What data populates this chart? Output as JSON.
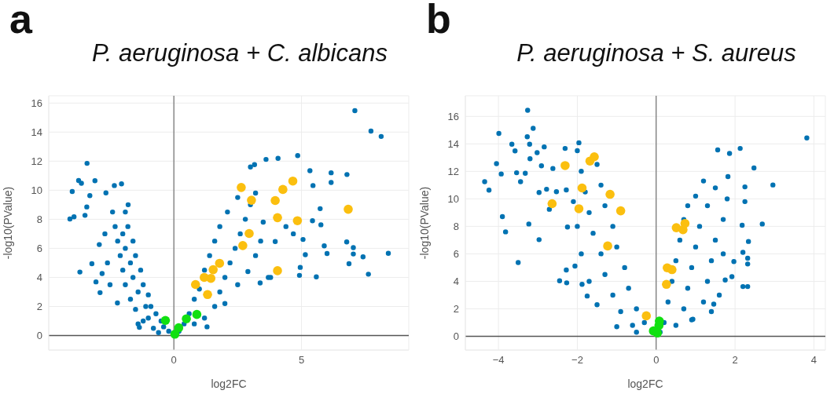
{
  "chart_data": [
    {
      "type": "scatter",
      "title": "P. aeruginosa + C. albicans",
      "xlabel": "log2FC",
      "ylabel": "-log10(PValue)",
      "annotations": [
        "a"
      ],
      "xlim": [
        -4.9,
        9.2
      ],
      "ylim": [
        -1,
        16.5
      ],
      "xticks": [
        0,
        5
      ],
      "yticks": [
        0,
        2,
        4,
        6,
        8,
        10,
        12,
        14,
        16
      ],
      "grid": true,
      "marker": "circle",
      "series": [
        {
          "color": "#0072b2",
          "x": [
            -3.4,
            -3.73,
            -3.62,
            -3.09,
            -3.98,
            -4.07,
            -3.91,
            -3.29,
            -3.41,
            -3.48,
            -2.92,
            -3.21,
            -3.68,
            -3.05,
            -2.89,
            -2.81,
            -2.05,
            -2.33,
            -2.66,
            -1.79,
            -2.21,
            -1.35,
            -0.2,
            -0.4,
            -0.5,
            -0.7,
            -0.9,
            -1.0,
            -1.2,
            -1.3,
            -1.5,
            -1.6,
            -1.8,
            -1.9,
            -0.8,
            -1.2,
            -1.5,
            -1.7,
            -1.9,
            -2.0,
            -2.1,
            -2.2,
            -2.3,
            -2.4,
            -1.0,
            -1.1,
            -1.4,
            -1.6,
            -1.7,
            -1.9,
            -2.0,
            -2.6,
            -2.7,
            -2.5,
            -1.4,
            -0.6,
            0.2,
            0.4,
            0.6,
            0.8,
            1.0,
            1.2,
            1.4,
            1.6,
            1.8,
            2.1,
            2.5,
            0.8,
            1.2,
            1.6,
            1.8,
            2.0,
            2.2,
            2.4,
            2.6,
            2.8,
            3.0,
            1.3,
            2.0,
            2.5,
            2.9,
            3.2,
            3.4,
            3.5,
            3.7,
            3.2,
            3.0,
            3.16,
            3.61,
            4.08,
            4.85,
            5.33,
            6.16,
            6.78,
            7.09,
            7.72,
            8.12,
            5.45,
            6.16,
            5.43,
            5.76,
            5.73,
            5.06,
            5.15,
            5.89,
            6.0,
            6.77,
            7.03,
            7.03,
            6.86,
            7.41,
            7.62,
            8.4,
            5.58,
            4.92,
            4.95,
            3.97,
            4.39,
            4.68,
            3.38,
            3.79
          ],
          "values": [
            11.85,
            10.67,
            10.48,
            10.65,
            9.91,
            8.02,
            8.17,
            9.63,
            8.85,
            8.27,
            6.26,
            4.94,
            4.37,
            3.69,
            2.95,
            4.27,
            10.44,
            10.32,
            9.82,
            9.0,
            2.24,
            0.56,
            0.3,
            0.6,
            1.0,
            1.5,
            2.0,
            2.8,
            3.5,
            4.5,
            5.5,
            6.5,
            7.5,
            8.5,
            0.5,
            1.0,
            1.8,
            2.5,
            3.5,
            4.5,
            5.5,
            6.5,
            7.5,
            8.5,
            1.2,
            2.0,
            3.0,
            4.0,
            5.0,
            6.0,
            7.0,
            5.0,
            7.0,
            3.5,
            0.8,
            0.2,
            0.3,
            0.8,
            1.5,
            2.5,
            3.2,
            4.5,
            5.5,
            6.5,
            7.5,
            8.5,
            9.5,
            0.8,
            1.2,
            2.0,
            3.0,
            4.0,
            5.0,
            6.0,
            7.0,
            8.0,
            9.0,
            0.6,
            2.2,
            3.5,
            4.4,
            5.5,
            6.5,
            7.8,
            4.0,
            9.8,
            11.6,
            11.76,
            12.12,
            12.19,
            12.38,
            11.34,
            11.2,
            11.08,
            15.47,
            14.07,
            13.7,
            10.32,
            10.53,
            7.9,
            7.62,
            8.73,
            6.61,
            5.56,
            6.17,
            5.64,
            6.44,
            6.05,
            5.61,
            4.94,
            5.41,
            4.22,
            5.66,
            4.04,
            4.14,
            4.69,
            6.47,
            7.5,
            7.0,
            3.62,
            4.0
          ]
        },
        {
          "color": "#fbbf0f",
          "x": [
            2.64,
            3.04,
            3.97,
            4.27,
            4.66,
            6.83,
            4.06,
            4.84,
            2.95,
            2.7,
            4.06,
            1.79,
            1.54,
            1.19,
            1.45,
            0.85,
            1.32
          ],
          "values": [
            10.19,
            9.31,
            9.29,
            10.05,
            10.63,
            8.69,
            8.11,
            7.9,
            7.02,
            6.19,
            4.46,
            4.97,
            4.53,
            4.0,
            3.93,
            3.51,
            2.82
          ]
        },
        {
          "color": "#11e011",
          "x": [
            -0.33,
            0.04,
            0.19,
            0.49,
            0.9
          ],
          "values": [
            1.04,
            0.09,
            0.53,
            1.15,
            1.45
          ]
        }
      ]
    },
    {
      "type": "scatter",
      "title": "P. aeruginosa + S. aureus",
      "xlabel": "log2FC",
      "ylabel": "-log10(PValue)",
      "annotations": [
        "b"
      ],
      "xlim": [
        -4.84,
        4.29
      ],
      "ylim": [
        -1,
        17.5
      ],
      "xticks": [
        -4,
        -2,
        0,
        2,
        4
      ],
      "yticks": [
        0,
        2,
        4,
        6,
        8,
        10,
        12,
        14,
        16
      ],
      "grid": true,
      "marker": "circle",
      "series": [
        {
          "color": "#0072b2",
          "x": [
            -3.26,
            -3.12,
            -3.99,
            -3.27,
            -3.21,
            -3.66,
            -3.58,
            -3.02,
            -2.84,
            -2.31,
            -3.2,
            -4.05,
            -2.91,
            -2.62,
            -3.93,
            -3.54,
            -3.32,
            -4.35,
            -3.44,
            -4.24,
            -2.97,
            -2.78,
            -2.53,
            -2.28,
            -3.9,
            -3.82,
            -3.23,
            -2.97,
            -3.5,
            -2.71,
            -2.25,
            -2.28,
            -2.45,
            -2.27,
            -1.96,
            -1.75,
            -1.88,
            -2.06,
            1.56,
            2.13,
            1.86,
            3.82,
            2.48,
            2.96,
            2.25,
            2.25,
            2.69,
            2.18,
            2.34,
            2.2,
            2.32,
            2.32,
            2.2,
            2.32,
            1.92,
            1.75,
            1.97,
            1.82,
            1.46,
            0.93,
            -0.1,
            -0.3,
            -0.5,
            -0.7,
            -0.8,
            -1.0,
            -1.1,
            -1.3,
            -1.4,
            -1.5,
            -0.6,
            -0.9,
            -1.1,
            -1.3,
            -1.4,
            -1.6,
            -1.7,
            -1.8,
            -1.9,
            -2.0,
            -1.0,
            -1.5,
            -1.7,
            -1.9,
            -2.0,
            -2.1,
            -0.5,
            0.1,
            0.2,
            0.3,
            0.4,
            0.5,
            0.6,
            0.7,
            0.8,
            1.0,
            1.2,
            0.5,
            0.7,
            0.8,
            0.9,
            1.0,
            1.1,
            1.3,
            1.5,
            0.9,
            1.2,
            1.3,
            1.4,
            1.5,
            1.7,
            1.8,
            1.6,
            1.7,
            1.4
          ],
          "values": [
            16.44,
            15.13,
            14.76,
            14.52,
            13.97,
            13.97,
            13.49,
            13.36,
            13.78,
            13.67,
            12.92,
            12.56,
            12.4,
            12.21,
            11.81,
            11.9,
            11.86,
            11.25,
            11.25,
            10.63,
            10.46,
            10.7,
            10.52,
            10.65,
            8.71,
            7.6,
            8.17,
            7.03,
            5.37,
            9.24,
            7.95,
            4.82,
            4.04,
            3.89,
            14.08,
            2.93,
            3.78,
            5.11,
            13.56,
            13.67,
            13.3,
            14.43,
            12.25,
            11.01,
            10.87,
            9.8,
            8.17,
            8.08,
            6.9,
            6.11,
            5.68,
            5.26,
            3.62,
            3.62,
            4.34,
            4.1,
            5.44,
            11.62,
            2.34,
            1.24,
            0.3,
            1.0,
            2.0,
            3.5,
            5.0,
            6.5,
            8.0,
            9.5,
            11.0,
            12.5,
            0.8,
            1.8,
            3.0,
            4.5,
            6.0,
            7.5,
            9.0,
            10.5,
            12.0,
            13.5,
            0.7,
            2.3,
            4.0,
            6.0,
            8.0,
            9.8,
            0.3,
            0.3,
            1.0,
            2.5,
            4.0,
            5.5,
            7.0,
            8.5,
            9.5,
            10.2,
            11.3,
            0.8,
            2.0,
            3.5,
            5.0,
            6.5,
            8.0,
            9.5,
            10.8,
            1.2,
            2.5,
            4.0,
            5.5,
            7.0,
            8.5,
            10.0,
            3.0,
            6.0,
            1.8
          ]
        },
        {
          "color": "#fbbf0f",
          "x": [
            -2.31,
            -2.64,
            -1.96,
            -1.88,
            -1.68,
            -1.57,
            -1.17,
            -0.9,
            -1.23,
            -0.25,
            0.26,
            0.28,
            0.4,
            0.51,
            0.68,
            0.73
          ],
          "values": [
            12.42,
            9.65,
            9.28,
            10.79,
            12.75,
            13.06,
            10.33,
            9.13,
            6.57,
            1.49,
            3.78,
            4.98,
            4.85,
            7.9,
            7.75,
            8.21
          ]
        },
        {
          "color": "#11e011",
          "x": [
            0.08,
            0.07,
            -0.07,
            0.03
          ],
          "values": [
            1.11,
            0.79,
            0.39,
            0.24
          ]
        }
      ]
    }
  ]
}
